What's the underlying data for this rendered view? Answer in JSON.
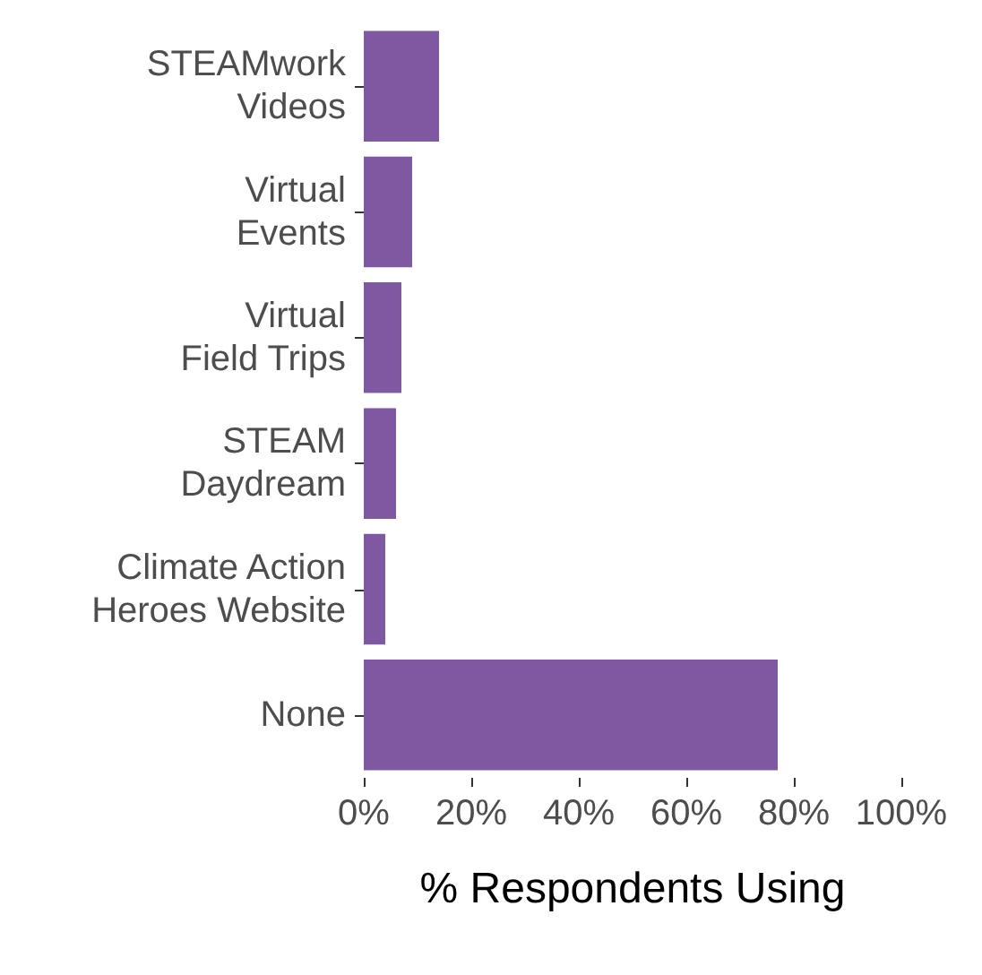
{
  "chart_data": {
    "type": "bar",
    "orientation": "horizontal",
    "xlabel": "% Respondents Using",
    "categories": [
      "STEAMwork\nVideos",
      "Virtual\nEvents",
      "Virtual\nField Trips",
      "STEAM\nDaydream",
      "Climate Action\nHeroes Website",
      "None"
    ],
    "values": [
      14,
      9,
      7,
      6,
      4,
      77
    ],
    "color": "#7f58a2",
    "xlim": [
      0,
      100
    ],
    "xticks": [
      {
        "value": 0,
        "label": "0%"
      },
      {
        "value": 20,
        "label": "20%"
      },
      {
        "value": 40,
        "label": "40%"
      },
      {
        "value": 60,
        "label": "60%"
      },
      {
        "value": 80,
        "label": "80%"
      },
      {
        "value": 100,
        "label": "100%"
      }
    ],
    "grid": false
  }
}
